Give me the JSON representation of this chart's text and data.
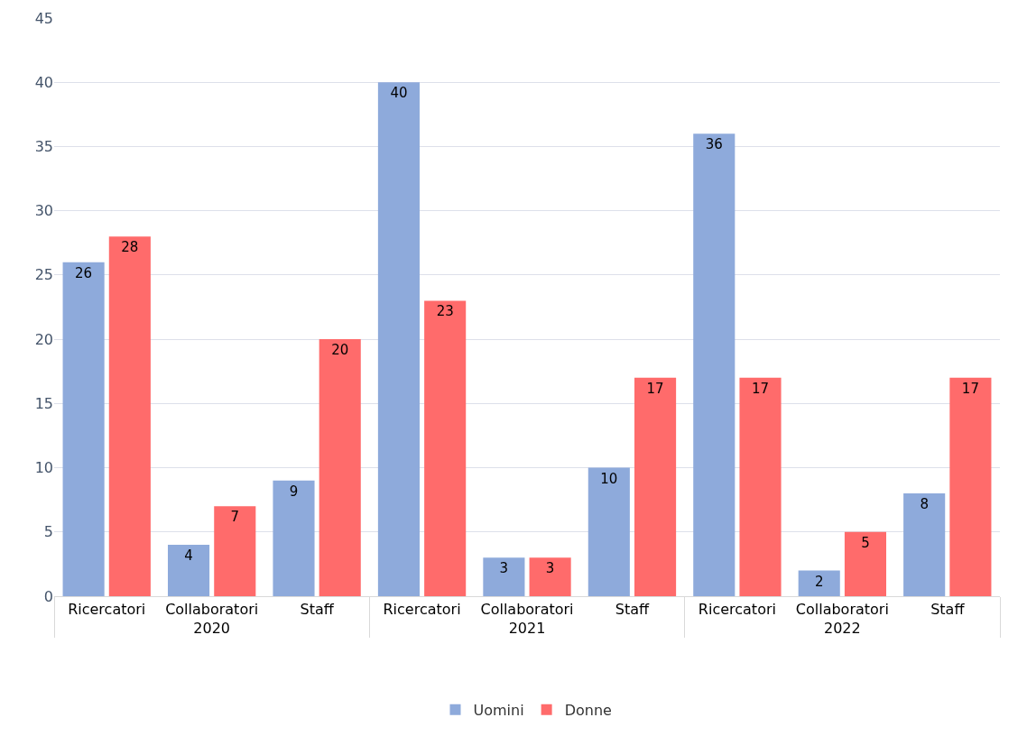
{
  "chart_data": {
    "type": "bar",
    "categories": [
      "Ricercatori",
      "Collaboratori",
      "Staff",
      "Ricercatori",
      "Collaboratori",
      "Staff",
      "Ricercatori",
      "Collaboratori",
      "Staff"
    ],
    "series": [
      {
        "name": "Uomini",
        "color": "#8eaadb",
        "values": [
          26,
          4,
          9,
          40,
          3,
          10,
          36,
          2,
          8
        ]
      },
      {
        "name": "Donne",
        "color": "#ff6b6b",
        "values": [
          28,
          7,
          20,
          23,
          3,
          17,
          17,
          5,
          17
        ]
      }
    ],
    "annotations": [
      "2020",
      "2021",
      "2022"
    ],
    "ylim": [
      0,
      45
    ],
    "yticks": [
      0,
      5,
      10,
      15,
      20,
      25,
      30,
      35,
      40,
      45
    ],
    "grid": "y",
    "legend": "bottom",
    "data_labels": true
  }
}
